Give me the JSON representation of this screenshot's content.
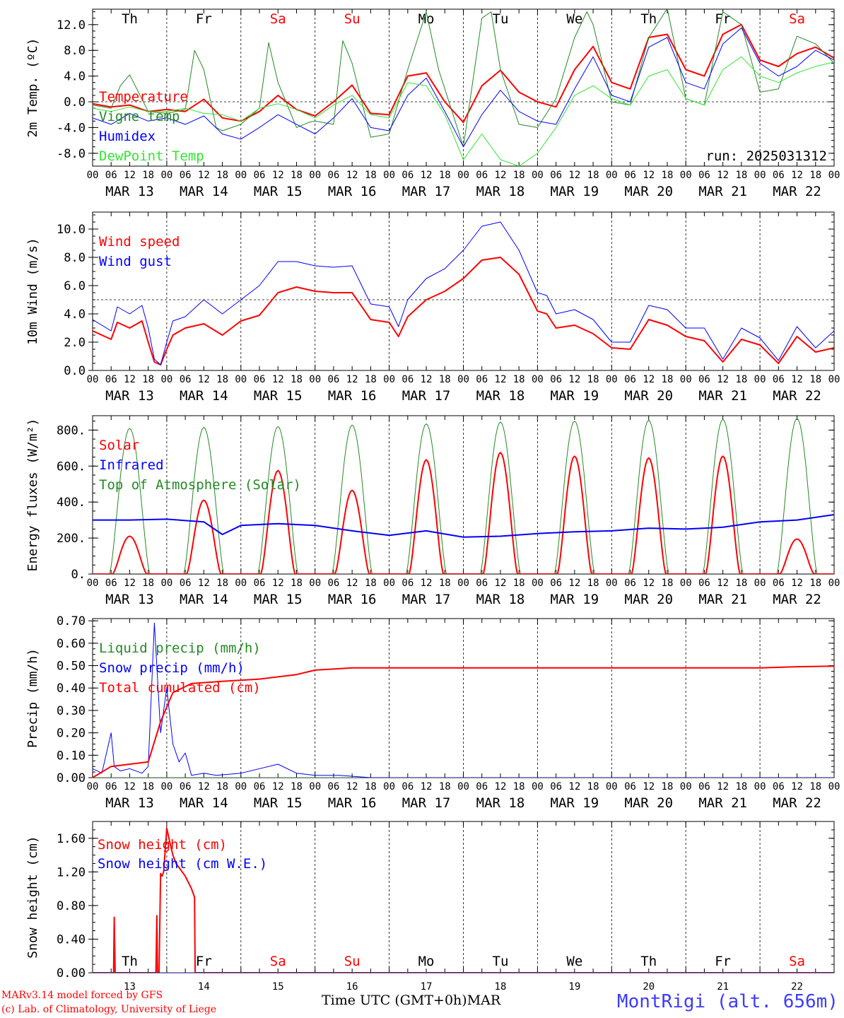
{
  "colors": {
    "red": "#ff0000",
    "blue": "#0000ff",
    "green": "#228b22",
    "lightgreen": "#2ee82e",
    "black": "#000000"
  },
  "footer": {
    "model": "MARv3.14 model forced by GFS",
    "lab": "(c) Lab. of Climatology, University of Liege",
    "xaxis_title": "Time UTC (GMT+0h)MAR",
    "station": "MontRigi (alt. 656m)"
  },
  "chart_data": [
    {
      "type": "line",
      "ylabel": "2m Temp. (ºC)",
      "ylim": [
        -10,
        14.4
      ],
      "yticks": [
        12,
        8,
        4,
        0,
        -4,
        -8
      ],
      "ytick_labels": [
        "12.0",
        "8.0",
        "4.0",
        "0.0",
        "-4.0",
        "-8.0"
      ],
      "ref_line": 0,
      "run_label": "run: 2025031312",
      "days": [
        "Th",
        "Fr",
        "Sa",
        "Su",
        "Mo",
        "Tu",
        "We",
        "Th",
        "Fr",
        "Sa"
      ],
      "day_colors": [
        "black",
        "black",
        "red",
        "red",
        "black",
        "black",
        "black",
        "black",
        "black",
        "red"
      ],
      "date_labels": [
        "MAR 13",
        "MAR 14",
        "MAR 15",
        "MAR 16",
        "MAR 17",
        "MAR 18",
        "MAR 19",
        "MAR 20",
        "MAR 21",
        "MAR 22"
      ],
      "legend": [
        "Temperature",
        "Vigne temp",
        "Humidex",
        "DewPoint Temp"
      ],
      "series": [
        {
          "name": "Temperature",
          "color": "red",
          "width": 2,
          "x": [
            0,
            6,
            12,
            18,
            24,
            30,
            36,
            42,
            48,
            54,
            60,
            66,
            72,
            78,
            84,
            90,
            96,
            102,
            108,
            114,
            120,
            126,
            132,
            138,
            144,
            150,
            156,
            162,
            168,
            174,
            180,
            186,
            192,
            198,
            204,
            210,
            216,
            222,
            228,
            234,
            240
          ],
          "y": [
            -0.3,
            -0.8,
            -0.5,
            -1.5,
            -1.2,
            -1.5,
            0.4,
            -2.5,
            -3.0,
            -1.5,
            1.0,
            -1.2,
            -2.2,
            0,
            2.6,
            -1.8,
            -2.0,
            4.0,
            4.5,
            0,
            -3.2,
            2.5,
            4.9,
            1.5,
            0,
            -0.8,
            5.0,
            8.6,
            3.0,
            2.0,
            10.0,
            10.5,
            5.0,
            4.0,
            10.5,
            12.0,
            6.5,
            5.5,
            7.5,
            8.5,
            6.8
          ]
        },
        {
          "name": "Vigne temp",
          "color": "green",
          "width": 1,
          "x": [
            0,
            6,
            9,
            12,
            18,
            24,
            30,
            33,
            36,
            40,
            42,
            48,
            54,
            57,
            60,
            66,
            70,
            72,
            78,
            81,
            84,
            90,
            96,
            102,
            108,
            112,
            114,
            120,
            126,
            129,
            132,
            138,
            144,
            150,
            156,
            160,
            162,
            168,
            174,
            180,
            186,
            192,
            198,
            204,
            210,
            216,
            222,
            228,
            234,
            240
          ],
          "y": [
            -0.5,
            -1.0,
            2.5,
            4.2,
            -1.5,
            -1.8,
            -1.2,
            8.0,
            5.0,
            -4.0,
            -4.5,
            -3.5,
            -1.0,
            9.2,
            3.0,
            -4.0,
            -3.2,
            -3.0,
            -3.5,
            9.5,
            6.0,
            -5.5,
            -5.0,
            5.0,
            14.0,
            5.0,
            2.0,
            -7.0,
            13.0,
            14.0,
            5.0,
            -3.5,
            -4.0,
            0.5,
            10.0,
            14.0,
            12.0,
            0.0,
            -0.5,
            10.0,
            14.5,
            0.5,
            -0.5,
            14.0,
            12.0,
            1.5,
            2.0,
            10.2,
            9.0,
            6.0
          ]
        },
        {
          "name": "Humidex",
          "color": "blue",
          "width": 1,
          "x": [
            0,
            6,
            12,
            18,
            24,
            30,
            36,
            42,
            48,
            54,
            60,
            66,
            72,
            78,
            84,
            90,
            96,
            102,
            108,
            114,
            120,
            126,
            132,
            138,
            144,
            150,
            156,
            162,
            168,
            174,
            180,
            186,
            192,
            198,
            204,
            210,
            216,
            222,
            228,
            234,
            240
          ],
          "y": [
            -2.5,
            -3.5,
            -1.8,
            -3.0,
            -2.5,
            -3.5,
            -2.2,
            -5.0,
            -5.8,
            -4.0,
            -2.0,
            -3.5,
            -5.0,
            -2.5,
            0.5,
            -4.0,
            -4.5,
            1.0,
            3.7,
            -1.5,
            -7.0,
            -2.0,
            1.8,
            -1.5,
            -3.0,
            -3.5,
            2.0,
            7.0,
            1.0,
            0.0,
            8.5,
            10.0,
            3.0,
            2.0,
            9.0,
            11.5,
            6.0,
            4.0,
            5.5,
            8.0,
            6.5
          ]
        },
        {
          "name": "DewPoint Temp",
          "color": "lightgreen",
          "width": 1,
          "x": [
            0,
            6,
            12,
            18,
            24,
            30,
            36,
            42,
            48,
            54,
            60,
            66,
            72,
            78,
            84,
            90,
            96,
            102,
            108,
            114,
            120,
            126,
            132,
            138,
            144,
            150,
            156,
            162,
            168,
            174,
            180,
            186,
            192,
            198,
            204,
            210,
            216,
            222,
            228,
            234,
            240
          ],
          "y": [
            -1.0,
            -1.5,
            -0.8,
            -1.5,
            -1.5,
            -1.0,
            -1.8,
            -2.0,
            -3.0,
            -1.0,
            -0.3,
            -1.2,
            -2.5,
            -0.5,
            1.0,
            -2.0,
            -2.5,
            3.0,
            2.5,
            -2.0,
            -9.0,
            -5.0,
            -9.0,
            -10.0,
            -8.0,
            -4.0,
            1.0,
            2.5,
            0.5,
            -0.5,
            4.0,
            5.0,
            0.5,
            -0.5,
            5.0,
            7.0,
            4.0,
            3.0,
            4.5,
            5.5,
            6.2
          ]
        }
      ]
    },
    {
      "type": "line",
      "ylabel": "10m Wind (m/s)",
      "ylim": [
        0,
        11.2
      ],
      "yticks": [
        0,
        2,
        4,
        6,
        8,
        10
      ],
      "ytick_labels": [
        "0.0",
        "2.0",
        "4.0",
        "6.0",
        "8.0",
        "10.0"
      ],
      "ref_line": 5,
      "date_labels": [
        "MAR 13",
        "MAR 14",
        "MAR 15",
        "MAR 16",
        "MAR 17",
        "MAR 18",
        "MAR 19",
        "MAR 20",
        "MAR 21",
        "MAR 22"
      ],
      "legend": [
        "Wind speed",
        "Wind gust"
      ],
      "series": [
        {
          "name": "Wind speed",
          "color": "red",
          "width": 2,
          "x": [
            0,
            6,
            8,
            12,
            16,
            18,
            20,
            22,
            24,
            26,
            30,
            36,
            42,
            48,
            54,
            60,
            66,
            72,
            78,
            84,
            90,
            96,
            99,
            102,
            108,
            114,
            120,
            126,
            132,
            138,
            144,
            147,
            150,
            156,
            162,
            168,
            174,
            180,
            186,
            192,
            198,
            204,
            210,
            216,
            222,
            228,
            234,
            240
          ],
          "y": [
            2.8,
            2.2,
            3.4,
            3.0,
            3.5,
            2.0,
            0.6,
            0.4,
            1.5,
            2.5,
            3.0,
            3.3,
            2.5,
            3.5,
            3.9,
            5.5,
            5.9,
            5.6,
            5.5,
            5.5,
            3.6,
            3.4,
            2.4,
            3.8,
            5.0,
            5.6,
            6.5,
            7.8,
            8.0,
            6.8,
            4.2,
            4.0,
            3.0,
            3.2,
            2.6,
            1.6,
            1.5,
            3.6,
            3.2,
            2.4,
            2.1,
            0.6,
            2.2,
            1.8,
            0.5,
            2.4,
            1.3,
            1.6
          ]
        },
        {
          "name": "Wind gust",
          "color": "blue",
          "width": 1,
          "x": [
            0,
            6,
            8,
            12,
            16,
            18,
            20,
            22,
            24,
            26,
            30,
            36,
            42,
            48,
            54,
            60,
            66,
            72,
            78,
            84,
            90,
            96,
            99,
            102,
            108,
            114,
            120,
            126,
            132,
            138,
            144,
            147,
            150,
            156,
            162,
            168,
            174,
            180,
            186,
            192,
            198,
            204,
            210,
            216,
            222,
            228,
            234,
            240
          ],
          "y": [
            3.6,
            2.8,
            4.5,
            4.0,
            4.6,
            3.0,
            0.8,
            0.4,
            2.0,
            3.5,
            3.8,
            5.0,
            4.0,
            5.0,
            6.0,
            7.7,
            7.7,
            7.4,
            7.3,
            7.4,
            4.7,
            4.5,
            3.1,
            5.0,
            6.5,
            7.2,
            8.5,
            10.2,
            10.5,
            8.5,
            5.5,
            5.3,
            4.0,
            4.3,
            3.6,
            2.0,
            2.0,
            4.6,
            4.3,
            3.0,
            3.0,
            0.8,
            3.0,
            2.3,
            0.7,
            3.1,
            1.6,
            2.8
          ]
        }
      ]
    },
    {
      "type": "line",
      "ylabel": "Energy fluxes (W/m²)",
      "ylim": [
        0,
        880
      ],
      "yticks": [
        0,
        200,
        400,
        600,
        800
      ],
      "ytick_labels": [
        "0.",
        "200.",
        "400.",
        "600.",
        "800."
      ],
      "date_labels": [
        "MAR 13",
        "MAR 14",
        "MAR 15",
        "MAR 16",
        "MAR 17",
        "MAR 18",
        "MAR 19",
        "MAR 20",
        "MAR 21",
        "MAR 22"
      ],
      "legend": [
        "Solar",
        "Infrared",
        "Top of Atmosphere (Solar)"
      ],
      "toa_peaks": [
        810,
        815,
        820,
        828,
        835,
        845,
        850,
        855,
        860,
        865
      ],
      "solar_peaks": [
        210,
        410,
        575,
        465,
        635,
        675,
        655,
        645,
        655,
        195
      ],
      "infrared": {
        "x": [
          0,
          12,
          24,
          36,
          42,
          48,
          60,
          72,
          84,
          96,
          108,
          120,
          132,
          144,
          156,
          168,
          180,
          192,
          204,
          216,
          228,
          240
        ],
        "y": [
          300,
          300,
          305,
          290,
          220,
          270,
          280,
          270,
          240,
          215,
          240,
          205,
          210,
          225,
          235,
          240,
          255,
          250,
          260,
          290,
          300,
          330
        ]
      },
      "series": [
        {
          "name": "Solar",
          "color": "red"
        },
        {
          "name": "Infrared",
          "color": "blue"
        },
        {
          "name": "Top of Atmosphere (Solar)",
          "color": "green"
        }
      ]
    },
    {
      "type": "line",
      "ylabel": "Precip (mm/h)",
      "ylim": [
        0,
        0.71
      ],
      "yticks": [
        0,
        0.1,
        0.2,
        0.3,
        0.4,
        0.5,
        0.6,
        0.7
      ],
      "ytick_labels": [
        "0.00",
        "0.10",
        "0.20",
        "0.30",
        "0.40",
        "0.50",
        "0.60",
        "0.70"
      ],
      "date_labels": [
        "MAR 13",
        "MAR 14",
        "MAR 15",
        "MAR 16",
        "MAR 17",
        "MAR 18",
        "MAR 19",
        "MAR 20",
        "MAR 21",
        "MAR 22"
      ],
      "legend": [
        "Liquid precip (mm/h)",
        "Snow precip (mm/h)",
        "Total cumulated (cm)"
      ],
      "series": [
        {
          "name": "Liquid precip (mm/h)",
          "color": "green",
          "width": 1,
          "x": [
            0,
            240
          ],
          "y": [
            0,
            0
          ]
        },
        {
          "name": "Snow precip (mm/h)",
          "color": "blue",
          "width": 1,
          "x": [
            0,
            3,
            6,
            7,
            9,
            12,
            16,
            18,
            20,
            22,
            24,
            26,
            28,
            30,
            32,
            36,
            40,
            48,
            60,
            66,
            72,
            80,
            90,
            100,
            120,
            240
          ],
          "y": [
            0.04,
            0.02,
            0.2,
            0.05,
            0.03,
            0.04,
            0.02,
            0.05,
            0.69,
            0.2,
            0.4,
            0.15,
            0.07,
            0.11,
            0.01,
            0.02,
            0.01,
            0.02,
            0.06,
            0.02,
            0.01,
            0.01,
            0.0,
            0.0,
            0.0,
            0.0
          ]
        },
        {
          "name": "Total cumulated (cm)",
          "color": "red",
          "width": 2,
          "x": [
            0,
            6,
            12,
            18,
            22,
            26,
            32,
            42,
            54,
            66,
            72,
            84,
            96,
            120,
            168,
            216,
            228,
            240
          ],
          "y": [
            0.0,
            0.05,
            0.06,
            0.07,
            0.25,
            0.38,
            0.42,
            0.43,
            0.44,
            0.46,
            0.48,
            0.49,
            0.49,
            0.49,
            0.49,
            0.49,
            0.495,
            0.498
          ]
        }
      ]
    },
    {
      "type": "line",
      "ylabel": "Snow height (cm)",
      "ylim": [
        0,
        1.8
      ],
      "yticks": [
        0,
        0.4,
        0.8,
        1.2,
        1.6
      ],
      "ytick_labels": [
        "0.00",
        "0.40",
        "0.80",
        "1.20",
        "1.60"
      ],
      "days": [
        "Th",
        "Fr",
        "Sa",
        "Su",
        "Mo",
        "Tu",
        "We",
        "Th",
        "Fr",
        "Sa"
      ],
      "day_colors": [
        "black",
        "black",
        "red",
        "red",
        "black",
        "black",
        "black",
        "black",
        "black",
        "red"
      ],
      "date_labels": [
        "13",
        "14",
        "15",
        "16",
        "17",
        "18",
        "19",
        "20",
        "21",
        "22"
      ],
      "legend": [
        "Snow height (cm)",
        "Snow height (cm W.E.)"
      ],
      "series": [
        {
          "name": "Snow height (cm)",
          "color": "red",
          "width": 2,
          "x": [
            0,
            6.8,
            7.0,
            7.3,
            20.5,
            20.8,
            21.0,
            21.5,
            22.0,
            22.5,
            23.0,
            24.0,
            25.0,
            26.0,
            27.0,
            28.0,
            30.0,
            32.0,
            33.0,
            33.2,
            240
          ],
          "y": [
            0,
            0,
            0.66,
            0,
            0,
            0.68,
            0,
            0,
            1.18,
            1.15,
            1.2,
            1.72,
            1.55,
            1.4,
            1.3,
            1.25,
            1.15,
            1.0,
            0.9,
            0,
            0
          ]
        },
        {
          "name": "Snow height (cm W.E.)",
          "color": "blue",
          "width": 1,
          "x": [
            0,
            240
          ],
          "y": [
            0,
            0
          ]
        }
      ]
    }
  ]
}
